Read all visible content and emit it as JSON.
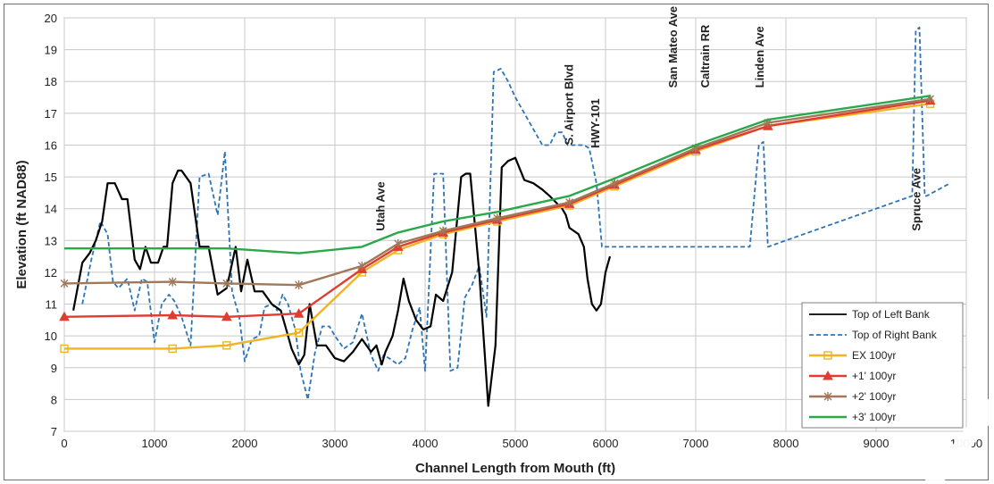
{
  "chart_data": {
    "type": "line",
    "xlabel": "Channel Length from Mouth (ft)",
    "ylabel": "Elevation (ft NAD88)",
    "xlim": [
      0,
      10000
    ],
    "ylim": [
      7,
      20
    ],
    "xticks": [
      "0",
      "1000",
      "2000",
      "3000",
      "4000",
      "5000",
      "6000",
      "7000",
      "8000",
      "9000",
      "10000"
    ],
    "yticks": [
      "7",
      "8",
      "9",
      "10",
      "11",
      "12",
      "13",
      "14",
      "15",
      "16",
      "17",
      "18",
      "19",
      "20"
    ],
    "grid": true,
    "legend_position": "bottom-right",
    "annotations": [
      {
        "text": "Utah Ave",
        "x": 3550,
        "y": 13.3
      },
      {
        "text": "S. Airport Blvd",
        "x": 5640,
        "y": 16.0
      },
      {
        "text": "HWY-101",
        "x": 5930,
        "y": 15.9
      },
      {
        "text": "San Mateo Ave",
        "x": 6790,
        "y": 17.8
      },
      {
        "text": "Caltrain RR",
        "x": 7150,
        "y": 17.8
      },
      {
        "text": "Linden Ave",
        "x": 7750,
        "y": 17.8
      },
      {
        "text": "Spruce Ave",
        "x": 9490,
        "y": 13.3
      }
    ],
    "series": [
      {
        "name": "Top of Left Bank",
        "color": "#000000",
        "dash": "solid",
        "marker": "none",
        "x": [
          100,
          200,
          280,
          350,
          420,
          480,
          560,
          640,
          700,
          780,
          840,
          900,
          960,
          1040,
          1100,
          1140,
          1200,
          1260,
          1300,
          1400,
          1500,
          1600,
          1700,
          1800,
          1900,
          1960,
          2030,
          2110,
          2200,
          2300,
          2400,
          2460,
          2520,
          2600,
          2660,
          2720,
          2800,
          2900,
          3000,
          3100,
          3200,
          3300,
          3400,
          3460,
          3520,
          3560,
          3640,
          3700,
          3760,
          3820,
          3900,
          3980,
          4060,
          4120,
          4200,
          4300,
          4400,
          4450,
          4500,
          4600,
          4700,
          4780,
          4850,
          4920,
          5000,
          5100,
          5200,
          5300,
          5380,
          5450,
          5520,
          5560,
          5600,
          5700,
          5760,
          5800,
          5850,
          5900,
          5950,
          6000,
          6050
        ],
        "y": [
          10.8,
          12.3,
          12.6,
          13.0,
          13.6,
          14.8,
          14.8,
          14.3,
          14.3,
          12.4,
          12.1,
          12.8,
          12.3,
          12.3,
          12.8,
          12.8,
          14.8,
          15.2,
          15.2,
          14.8,
          12.8,
          12.8,
          11.3,
          11.5,
          12.8,
          11.4,
          12.4,
          11.4,
          11.4,
          11.0,
          10.8,
          10.2,
          9.6,
          9.1,
          9.4,
          11.0,
          9.7,
          9.7,
          9.3,
          9.2,
          9.5,
          9.9,
          9.5,
          9.7,
          9.1,
          9.5,
          10.0,
          10.8,
          11.8,
          11.1,
          10.5,
          10.2,
          10.3,
          11.3,
          11.1,
          12.0,
          15.0,
          15.1,
          15.1,
          12.0,
          7.8,
          9.7,
          15.3,
          15.5,
          15.6,
          14.9,
          14.8,
          14.6,
          14.4,
          14.2,
          14.0,
          13.8,
          13.4,
          13.2,
          12.8,
          11.8,
          11.0,
          10.8,
          11.0,
          12.0,
          12.5
        ],
        "x_note": ""
      },
      {
        "name": "Top of Right Bank",
        "color": "#2e75b6",
        "dash": "dashed",
        "marker": "none",
        "x": [
          200,
          300,
          400,
          480,
          540,
          600,
          700,
          780,
          860,
          920,
          1000,
          1080,
          1160,
          1220,
          1300,
          1400,
          1500,
          1600,
          1700,
          1780,
          1860,
          1940,
          2000,
          2080,
          2160,
          2220,
          2300,
          2360,
          2420,
          2480,
          2560,
          2620,
          2700,
          2780,
          2860,
          2940,
          3000,
          3100,
          3200,
          3300,
          3400,
          3480,
          3540,
          3600,
          3700,
          3780,
          3860,
          3940,
          4000,
          4100,
          4200,
          4280,
          4360,
          4440,
          4520,
          4600,
          4680,
          4760,
          4840,
          4920,
          5000,
          5100,
          5200,
          5300,
          5380,
          5450,
          5520,
          5580,
          5640,
          5700,
          5760,
          5820,
          5900,
          5960,
          6020,
          6060
        ],
        "y": [
          11.0,
          12.4,
          13.6,
          13.2,
          11.7,
          11.5,
          11.8,
          10.8,
          11.8,
          11.7,
          9.8,
          11.0,
          11.3,
          11.1,
          10.6,
          9.7,
          15.0,
          15.1,
          13.8,
          15.8,
          11.4,
          10.6,
          9.2,
          9.9,
          10.0,
          10.9,
          11.0,
          10.8,
          11.3,
          11.0,
          10.2,
          8.9,
          8.0,
          9.5,
          10.3,
          10.3,
          10.0,
          9.6,
          9.8,
          10.7,
          9.4,
          8.9,
          9.4,
          9.3,
          9.1,
          9.3,
          10.2,
          10.9,
          8.9,
          15.1,
          15.1,
          8.9,
          9.0,
          11.2,
          11.6,
          12.2,
          10.6,
          18.3,
          18.4,
          18.0,
          17.5,
          17.0,
          16.5,
          16.0,
          16.0,
          16.4,
          16.4,
          16.0,
          16.0,
          16.0,
          16.0,
          15.9,
          14.8,
          12.8,
          12.8,
          12.8
        ],
        "x_note": ""
      },
      {
        "name": "EX 100yr",
        "color": "#f0b323",
        "dash": "solid",
        "marker": "square",
        "x": [
          0,
          1200,
          1800,
          2600,
          3300,
          3700,
          4200,
          4800,
          5600,
          6100,
          7000,
          7800,
          9600
        ],
        "y": [
          9.6,
          9.6,
          9.7,
          10.1,
          12.0,
          12.7,
          13.2,
          13.6,
          14.1,
          14.7,
          15.8,
          16.6,
          17.3
        ]
      },
      {
        "name": "+1' 100yr",
        "color": "#e03c31",
        "dash": "solid",
        "marker": "triangle",
        "x": [
          0,
          1200,
          1800,
          2600,
          3300,
          3700,
          4200,
          4800,
          5600,
          6100,
          7000,
          7800,
          9600
        ],
        "y": [
          10.6,
          10.65,
          10.6,
          10.7,
          12.1,
          12.8,
          13.25,
          13.65,
          14.15,
          14.75,
          15.85,
          16.6,
          17.4
        ]
      },
      {
        "name": "+2' 100yr",
        "color": "#a0785a",
        "dash": "solid",
        "marker": "star",
        "x": [
          0,
          1200,
          1800,
          2600,
          3300,
          3700,
          4200,
          4800,
          5600,
          6100,
          7000,
          7800,
          9600
        ],
        "y": [
          11.65,
          11.7,
          11.65,
          11.6,
          12.2,
          12.9,
          13.3,
          13.7,
          14.2,
          14.8,
          15.9,
          16.7,
          17.45
        ]
      },
      {
        "name": "+3' 100yr",
        "color": "#2aa84a",
        "dash": "solid",
        "marker": "none",
        "x": [
          0,
          1200,
          1800,
          2600,
          3300,
          3700,
          4200,
          4800,
          5600,
          6100,
          7000,
          7800,
          9600
        ],
        "y": [
          12.75,
          12.75,
          12.75,
          12.6,
          12.8,
          13.25,
          13.6,
          13.9,
          14.4,
          14.95,
          16.0,
          16.8,
          17.55
        ]
      }
    ],
    "extra_right_bank_tail": {
      "x": [
        6060,
        7300,
        7450,
        7600,
        7700,
        7750,
        7800,
        9400,
        9440,
        9480,
        9540,
        9560,
        9820
      ],
      "y": [
        12.8,
        12.8,
        12.8,
        12.8,
        16.0,
        16.1,
        12.8,
        14.4,
        19.6,
        19.7,
        14.4,
        14.4,
        14.8
      ]
    }
  }
}
